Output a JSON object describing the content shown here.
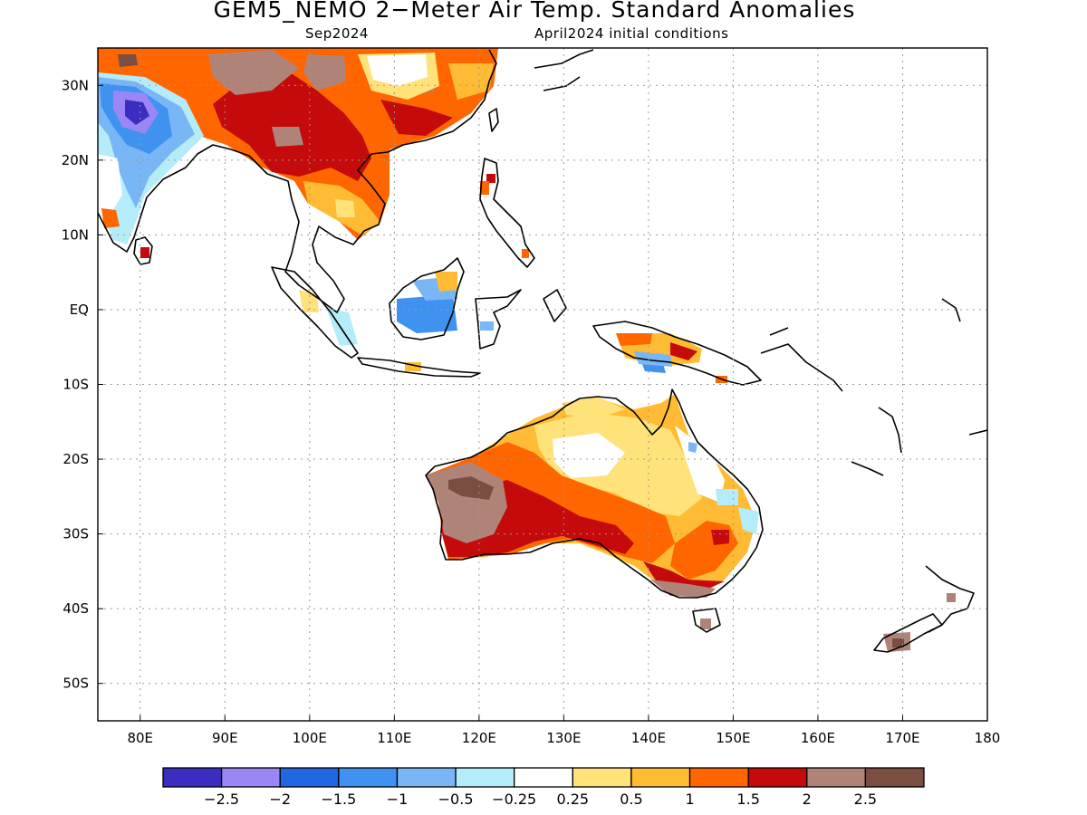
{
  "title": "GEM5_NEMO 2−Meter Air Temp. Standard Anomalies",
  "subtitle_left": "Sep2024",
  "subtitle_right": "April2024 initial conditions",
  "map": {
    "lon_range": [
      75,
      180
    ],
    "lat_range": [
      -55,
      35
    ],
    "lon_ticks": [
      {
        "v": 80,
        "label": "80E"
      },
      {
        "v": 90,
        "label": "90E"
      },
      {
        "v": 100,
        "label": "100E"
      },
      {
        "v": 110,
        "label": "110E"
      },
      {
        "v": 120,
        "label": "120E"
      },
      {
        "v": 130,
        "label": "130E"
      },
      {
        "v": 140,
        "label": "140E"
      },
      {
        "v": 150,
        "label": "150E"
      },
      {
        "v": 160,
        "label": "160E"
      },
      {
        "v": 170,
        "label": "170E"
      },
      {
        "v": 180,
        "label": "180"
      }
    ],
    "lat_ticks": [
      {
        "v": 30,
        "label": "30N"
      },
      {
        "v": 20,
        "label": "20N"
      },
      {
        "v": 10,
        "label": "10N"
      },
      {
        "v": 0,
        "label": "EQ"
      },
      {
        "v": -10,
        "label": "10S"
      },
      {
        "v": -20,
        "label": "20S"
      },
      {
        "v": -30,
        "label": "30S"
      },
      {
        "v": -40,
        "label": "40S"
      },
      {
        "v": -50,
        "label": "50S"
      }
    ],
    "grid": "dotted"
  },
  "colorbar": {
    "colors": [
      "#3b2dbf",
      "#9a87f5",
      "#2266e0",
      "#3f92f0",
      "#78b6f6",
      "#b4ecfa",
      "#ffffff",
      "#ffe27a",
      "#ffbb33",
      "#ff6600",
      "#c40a0a",
      "#b08378",
      "#7a4e40"
    ],
    "labels": [
      "−2.5",
      "−2",
      "−1.5",
      "−1",
      "−0.5",
      "−0.25",
      "0.25",
      "0.5",
      "1",
      "1.5",
      "2",
      "2.5"
    ]
  }
}
